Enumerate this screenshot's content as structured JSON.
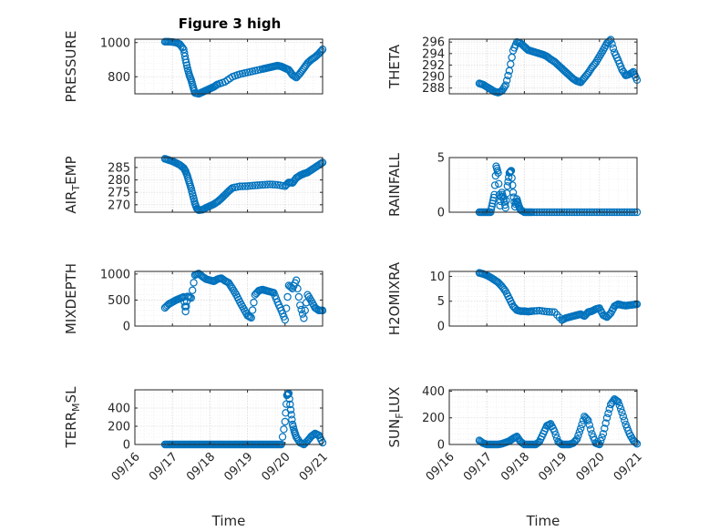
{
  "figure": {
    "title": "Figure 3 high"
  },
  "colors": {
    "series": "#0072bd",
    "axes": "#262626",
    "grid": "#d9d9d9",
    "background": "#ffffff"
  },
  "chart_data": [
    {
      "type": "scatter",
      "ylabel": "PRESSURE",
      "ylabel_sub": "",
      "xlim": [
        0,
        5
      ],
      "ylim": [
        700,
        1020
      ],
      "yticks": [
        800,
        1000
      ],
      "ytick_labels": [
        "800",
        "1000"
      ],
      "xticks": [
        0,
        1,
        2,
        3,
        4,
        5
      ],
      "xtick_labels": [],
      "xlabel": "",
      "grid": true,
      "x": [
        0.8,
        0.9,
        1.0,
        1.1,
        1.2,
        1.3,
        1.35,
        1.4,
        1.45,
        1.5,
        1.55,
        1.6,
        1.7,
        1.8,
        1.9,
        2.0,
        2.1,
        2.2,
        2.4,
        2.6,
        2.8,
        3.0,
        3.2,
        3.4,
        3.5,
        3.6,
        3.7,
        3.8,
        3.9,
        4.0,
        4.1,
        4.2,
        4.3,
        4.4,
        4.5,
        4.6,
        4.7,
        4.8,
        4.9,
        5.0
      ],
      "y": [
        1005,
        1005,
        1003,
        1000,
        990,
        960,
        900,
        850,
        810,
        780,
        740,
        705,
        700,
        710,
        720,
        730,
        740,
        755,
        770,
        800,
        815,
        825,
        835,
        845,
        850,
        855,
        860,
        865,
        860,
        850,
        840,
        810,
        795,
        820,
        850,
        880,
        900,
        915,
        935,
        960
      ]
    },
    {
      "type": "scatter",
      "ylabel": "THETA",
      "ylabel_sub": "",
      "xlim": [
        0,
        5
      ],
      "ylim": [
        287,
        296.5
      ],
      "yticks": [
        288,
        290,
        292,
        294,
        296
      ],
      "ytick_labels": [
        "288",
        "290",
        "292",
        "294",
        "296"
      ],
      "xticks": [
        0,
        1,
        2,
        3,
        4,
        5
      ],
      "xtick_labels": [],
      "xlabel": "",
      "grid": true,
      "x": [
        0.8,
        0.9,
        1.0,
        1.1,
        1.2,
        1.3,
        1.4,
        1.5,
        1.6,
        1.7,
        1.8,
        1.9,
        2.0,
        2.1,
        2.2,
        2.3,
        2.4,
        2.5,
        2.6,
        2.7,
        2.8,
        2.9,
        3.0,
        3.1,
        3.2,
        3.3,
        3.4,
        3.5,
        3.6,
        3.7,
        3.8,
        3.9,
        4.0,
        4.1,
        4.2,
        4.3,
        4.4,
        4.5,
        4.6,
        4.7,
        4.8,
        4.9,
        5.0
      ],
      "y": [
        288.8,
        288.6,
        288.2,
        287.8,
        287.4,
        287.2,
        287.5,
        288.5,
        291.0,
        294.5,
        296.0,
        295.8,
        295.2,
        294.6,
        294.4,
        294.2,
        294.0,
        293.8,
        293.5,
        293.0,
        292.6,
        292.0,
        291.4,
        290.8,
        290.2,
        289.6,
        289.2,
        289.0,
        289.8,
        290.6,
        291.6,
        292.4,
        293.5,
        294.6,
        295.8,
        296.4,
        294.2,
        292.8,
        291.2,
        290.2,
        290.4,
        290.8,
        289.4
      ]
    },
    {
      "type": "scatter",
      "ylabel": "AIR",
      "ylabel_sub": "T",
      "ylabel_suffix": "EMP",
      "xlim": [
        0,
        5
      ],
      "ylim": [
        267,
        289
      ],
      "yticks": [
        270,
        275,
        280,
        285
      ],
      "ytick_labels": [
        "270",
        "275",
        "280",
        "285"
      ],
      "xticks": [
        0,
        1,
        2,
        3,
        4,
        5
      ],
      "xtick_labels": [],
      "xlabel": "",
      "grid": true,
      "x": [
        0.8,
        0.9,
        1.0,
        1.1,
        1.2,
        1.3,
        1.35,
        1.4,
        1.45,
        1.5,
        1.55,
        1.6,
        1.65,
        1.7,
        1.8,
        1.9,
        2.0,
        2.1,
        2.2,
        2.3,
        2.4,
        2.5,
        2.6,
        2.8,
        3.0,
        3.2,
        3.4,
        3.6,
        3.8,
        4.0,
        4.1,
        4.2,
        4.3,
        4.4,
        4.5,
        4.6,
        4.7,
        4.8,
        4.9,
        5.0
      ],
      "y": [
        288.5,
        288.0,
        287.5,
        286.8,
        286.0,
        284.8,
        283.5,
        281.5,
        279.0,
        276.5,
        273.5,
        270.5,
        268.5,
        267.8,
        268.0,
        268.8,
        269.5,
        270.2,
        271.2,
        272.5,
        274.0,
        275.5,
        276.8,
        277.4,
        277.5,
        277.8,
        278.0,
        278.2,
        278.0,
        277.5,
        279.0,
        278.8,
        280.8,
        281.8,
        282.5,
        283.0,
        284.0,
        285.0,
        286.0,
        287.0
      ]
    },
    {
      "type": "scatter",
      "ylabel": "RAINFALL",
      "ylabel_sub": "",
      "xlim": [
        0,
        5
      ],
      "ylim": [
        0,
        5
      ],
      "yticks": [
        0,
        5
      ],
      "ytick_labels": [
        "0",
        "5"
      ],
      "xticks": [
        0,
        1,
        2,
        3,
        4,
        5
      ],
      "xtick_labels": [],
      "xlabel": "",
      "grid": true,
      "x": [
        0.8,
        0.9,
        1.0,
        1.1,
        1.15,
        1.2,
        1.25,
        1.3,
        1.35,
        1.4,
        1.45,
        1.5,
        1.55,
        1.6,
        1.65,
        1.7,
        1.75,
        1.8,
        1.85,
        1.9,
        2.0,
        2.1,
        2.2,
        2.4,
        2.6,
        2.8,
        3.0,
        3.2,
        3.4,
        3.6,
        3.8,
        4.0,
        4.2,
        4.4,
        4.6,
        4.8,
        5.0
      ],
      "y": [
        0,
        0,
        0,
        0,
        0.8,
        1.6,
        4.2,
        3.6,
        0.6,
        1.8,
        1.2,
        0.4,
        2.4,
        3.6,
        3.8,
        1.8,
        0.5,
        1.2,
        0.6,
        0.2,
        0,
        0,
        0,
        0,
        0,
        0,
        0,
        0,
        0,
        0,
        0,
        0,
        0,
        0,
        0,
        0,
        0
      ]
    },
    {
      "type": "scatter",
      "ylabel": "MIXDEPTH",
      "ylabel_sub": "",
      "xlim": [
        0,
        5
      ],
      "ylim": [
        0,
        1050
      ],
      "yticks": [
        0,
        500,
        1000
      ],
      "ytick_labels": [
        "0",
        "500",
        "1000"
      ],
      "xticks": [
        0,
        1,
        2,
        3,
        4,
        5
      ],
      "xtick_labels": [],
      "xlabel": "",
      "grid": true,
      "x": [
        0.8,
        0.9,
        1.0,
        1.1,
        1.2,
        1.3,
        1.35,
        1.4,
        1.5,
        1.6,
        1.7,
        1.8,
        1.9,
        2.0,
        2.1,
        2.2,
        2.3,
        2.4,
        2.5,
        2.6,
        2.7,
        2.8,
        2.9,
        3.0,
        3.1,
        3.2,
        3.3,
        3.4,
        3.5,
        3.6,
        3.7,
        3.8,
        3.9,
        4.0,
        4.1,
        4.2,
        4.3,
        4.4,
        4.5,
        4.6,
        4.7,
        4.8,
        4.9,
        5.0
      ],
      "y": [
        350,
        420,
        460,
        500,
        530,
        560,
        280,
        570,
        540,
        980,
        1010,
        950,
        900,
        880,
        860,
        900,
        920,
        870,
        830,
        720,
        600,
        460,
        330,
        200,
        160,
        600,
        680,
        700,
        680,
        660,
        640,
        460,
        300,
        120,
        780,
        720,
        880,
        400,
        150,
        600,
        480,
        350,
        300,
        300
      ]
    },
    {
      "type": "scatter",
      "ylabel": "H2OMIXRA",
      "ylabel_sub": "",
      "xlim": [
        0,
        5
      ],
      "ylim": [
        0,
        11
      ],
      "yticks": [
        0,
        5,
        10
      ],
      "ytick_labels": [
        "0",
        "5",
        "10"
      ],
      "xticks": [
        0,
        1,
        2,
        3,
        4,
        5
      ],
      "xtick_labels": [],
      "xlabel": "",
      "grid": true,
      "x": [
        0.8,
        0.9,
        1.0,
        1.1,
        1.2,
        1.3,
        1.4,
        1.5,
        1.6,
        1.7,
        1.8,
        1.9,
        2.0,
        2.1,
        2.2,
        2.4,
        2.6,
        2.8,
        3.0,
        3.1,
        3.2,
        3.3,
        3.4,
        3.5,
        3.6,
        3.7,
        3.8,
        3.9,
        4.0,
        4.1,
        4.2,
        4.3,
        4.4,
        4.5,
        4.6,
        4.7,
        4.8,
        4.9,
        5.0
      ],
      "y": [
        10.7,
        10.5,
        10.2,
        9.8,
        9.3,
        8.8,
        8.0,
        7.0,
        5.5,
        4.0,
        3.2,
        3.0,
        3.0,
        2.9,
        3.0,
        3.1,
        2.9,
        2.8,
        1.2,
        1.6,
        1.8,
        2.0,
        2.2,
        2.4,
        2.0,
        2.8,
        3.0,
        3.4,
        3.6,
        2.2,
        1.8,
        2.6,
        4.0,
        4.4,
        4.2,
        4.1,
        4.2,
        4.3,
        4.4
      ]
    },
    {
      "type": "scatter",
      "ylabel": "TERR",
      "ylabel_sub": "M",
      "ylabel_suffix": "SL",
      "xlim": [
        0,
        5
      ],
      "ylim": [
        0,
        600
      ],
      "yticks": [
        0,
        200,
        400
      ],
      "ytick_labels": [
        "0",
        "200",
        "400"
      ],
      "xticks": [
        0,
        1,
        2,
        3,
        4,
        5
      ],
      "xtick_labels": [
        "09/16",
        "09/17",
        "09/18",
        "09/19",
        "09/20",
        "09/21"
      ],
      "xlabel": "Time",
      "grid": true,
      "x": [
        0.8,
        0.9,
        1.0,
        1.1,
        1.2,
        1.3,
        1.4,
        1.5,
        1.6,
        1.7,
        1.8,
        1.9,
        2.0,
        2.1,
        2.2,
        2.3,
        2.4,
        2.5,
        2.6,
        2.7,
        2.8,
        2.9,
        3.0,
        3.1,
        3.2,
        3.3,
        3.4,
        3.5,
        3.6,
        3.7,
        3.8,
        3.9,
        4.0,
        4.05,
        4.1,
        4.15,
        4.2,
        4.25,
        4.3,
        4.4,
        4.5,
        4.6,
        4.7,
        4.8,
        4.9,
        5.0
      ],
      "y": [
        0,
        0,
        0,
        0,
        0,
        0,
        0,
        0,
        0,
        0,
        0,
        0,
        0,
        0,
        0,
        0,
        0,
        0,
        0,
        0,
        0,
        0,
        0,
        0,
        0,
        0,
        0,
        0,
        0,
        0,
        0,
        0,
        250,
        540,
        560,
        380,
        220,
        140,
        80,
        20,
        0,
        40,
        90,
        120,
        100,
        20
      ]
    },
    {
      "type": "scatter",
      "ylabel": "SUN",
      "ylabel_sub": "F",
      "ylabel_suffix": "LUX",
      "xlim": [
        0,
        5
      ],
      "ylim": [
        0,
        410
      ],
      "yticks": [
        0,
        200,
        400
      ],
      "ytick_labels": [
        "0",
        "200",
        "400"
      ],
      "xticks": [
        0,
        1,
        2,
        3,
        4,
        5
      ],
      "xtick_labels": [
        "09/16",
        "09/17",
        "09/18",
        "09/19",
        "09/20",
        "09/21"
      ],
      "xlabel": "Time",
      "grid": true,
      "x": [
        0.8,
        0.9,
        1.0,
        1.1,
        1.2,
        1.3,
        1.4,
        1.5,
        1.6,
        1.7,
        1.8,
        1.9,
        2.0,
        2.1,
        2.2,
        2.3,
        2.4,
        2.5,
        2.6,
        2.7,
        2.8,
        2.9,
        3.0,
        3.1,
        3.2,
        3.3,
        3.4,
        3.5,
        3.6,
        3.7,
        3.8,
        3.9,
        4.0,
        4.1,
        4.2,
        4.3,
        4.4,
        4.5,
        4.6,
        4.7,
        4.8,
        4.9,
        5.0
      ],
      "y": [
        30,
        10,
        0,
        0,
        0,
        0,
        5,
        15,
        25,
        45,
        60,
        20,
        0,
        0,
        0,
        0,
        20,
        80,
        140,
        155,
        100,
        20,
        0,
        0,
        0,
        10,
        40,
        120,
        210,
        180,
        80,
        10,
        0,
        80,
        200,
        300,
        340,
        320,
        240,
        150,
        80,
        30,
        5
      ]
    }
  ]
}
